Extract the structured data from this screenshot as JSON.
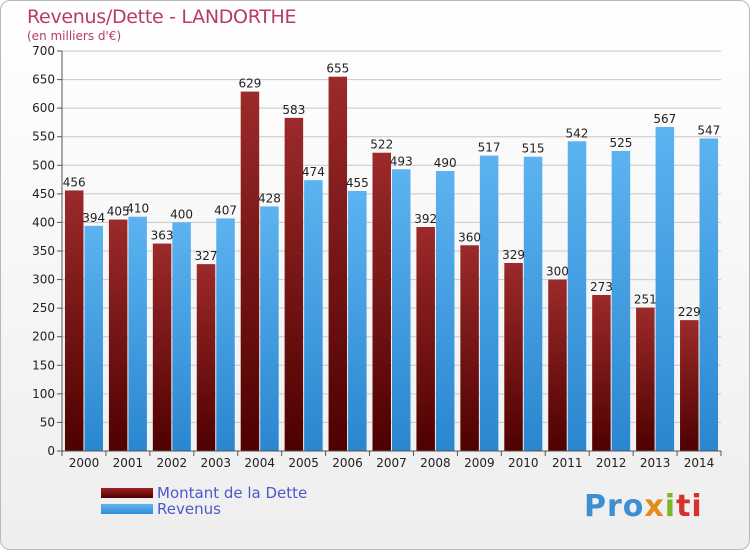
{
  "header": {
    "title": "Revenus/Dette - LANDORTHE",
    "subtitle": "(en milliers d'€)"
  },
  "legend": {
    "debt_label": "Montant de la Dette",
    "revenue_label": "Revenus"
  },
  "logo": {
    "text": "Proxiti",
    "parts": [
      "Pro",
      "x",
      "i",
      "ti"
    ]
  },
  "colors": {
    "debt": "#7a1414",
    "revenue": "#4aa3e8",
    "title": "#b83a6a"
  },
  "chart_data": {
    "type": "bar",
    "title": "Revenus/Dette - LANDORTHE",
    "ylabel": "(en milliers d'€)",
    "categories": [
      "2000",
      "2001",
      "2002",
      "2003",
      "2004",
      "2005",
      "2006",
      "2007",
      "2008",
      "2009",
      "2010",
      "2011",
      "2012",
      "2013",
      "2014"
    ],
    "series": [
      {
        "name": "Montant de la Dette",
        "values": [
          456,
          405,
          363,
          327,
          629,
          583,
          655,
          522,
          392,
          360,
          329,
          300,
          273,
          251,
          229
        ]
      },
      {
        "name": "Revenus",
        "values": [
          394,
          410,
          400,
          407,
          428,
          474,
          455,
          493,
          490,
          517,
          515,
          542,
          525,
          567,
          547
        ]
      }
    ],
    "ylim": [
      0,
      700
    ],
    "yticks": [
      0,
      50,
      100,
      150,
      200,
      250,
      300,
      350,
      400,
      450,
      500,
      550,
      600,
      650,
      700
    ],
    "grid": true,
    "legend_position": "bottom-left"
  }
}
